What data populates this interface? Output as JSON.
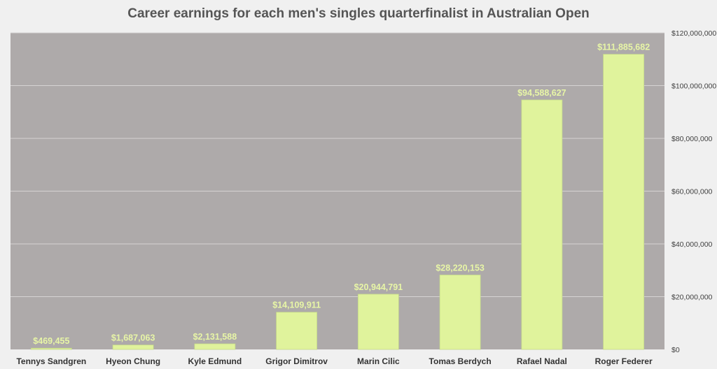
{
  "chart_data": {
    "type": "bar",
    "title": "Career earnings for each men's singles quarterfinalist in Australian Open",
    "categories": [
      "Tennys Sandgren",
      "Hyeon Chung",
      "Kyle Edmund",
      "Grigor Dimitrov",
      "Marin Cilic",
      "Tomas Berdych",
      "Rafael Nadal",
      "Roger Federer"
    ],
    "values": [
      469455,
      1687063,
      2131588,
      14109911,
      20944791,
      28220153,
      94588627,
      111885682
    ],
    "data_labels": [
      "$469,455",
      "$1,687,063",
      "$2,131,588",
      "$14,109,911",
      "$20,944,791",
      "$28,220,153",
      "$94,588,627",
      "$111,885,682"
    ],
    "ylim": [
      0,
      120000000
    ],
    "yticks": [
      0,
      20000000,
      40000000,
      60000000,
      80000000,
      100000000,
      120000000
    ],
    "ytick_labels": [
      "$0",
      "$20,000,000",
      "$40,000,000",
      "$60,000,000",
      "$80,000,000",
      "$100,000,000",
      "$120,000,000"
    ],
    "y_axis_side": "right",
    "grid": true,
    "legend": "none",
    "xlabel": "",
    "ylabel": ""
  },
  "colors": {
    "plot_background": "#aeaaaa",
    "bar": "#e0f39c",
    "bar_border": "#c5d98a",
    "data_label": "#e7f5a6",
    "gridline": "#d6d3d3",
    "page_background": "#f0f0f0"
  }
}
